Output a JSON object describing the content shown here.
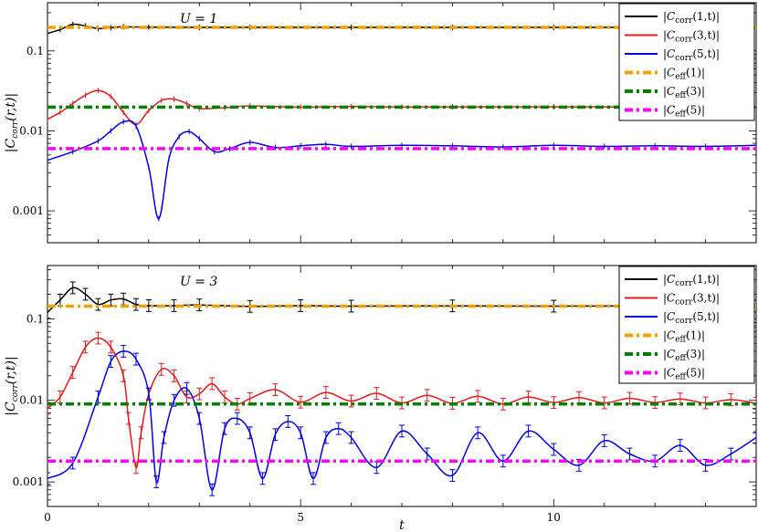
{
  "figure": {
    "xlabel": "t",
    "ylabel": "|C_corr(r,t)|"
  },
  "chart_data": [
    {
      "type": "line",
      "annotation": "U = 1",
      "xlabel": "",
      "ylabel": "|C_corr(r,t)|",
      "xlim": [
        0,
        14
      ],
      "ylim": [
        0.0004,
        0.4
      ],
      "yscale": "log",
      "x_ticks": [
        0,
        5,
        10
      ],
      "y_ticks": [
        0.001,
        0.01,
        0.1
      ],
      "y_tick_labels": [
        "0.001",
        "0.01",
        "0.1"
      ],
      "legend_position": "top-right",
      "series": [
        {
          "name": "|C_corr(1,t)|",
          "color": "#000000",
          "style": "solid",
          "x": [
            0,
            0.25,
            0.5,
            0.75,
            1.0,
            1.25,
            1.5,
            2,
            3,
            4,
            6,
            8,
            10,
            12,
            14
          ],
          "y": [
            0.165,
            0.185,
            0.215,
            0.205,
            0.19,
            0.195,
            0.2,
            0.198,
            0.197,
            0.197,
            0.197,
            0.197,
            0.197,
            0.197,
            0.197
          ]
        },
        {
          "name": "|C_corr(3,t)|",
          "color": "#e41a1c",
          "style": "solid",
          "x": [
            0,
            0.25,
            0.5,
            0.75,
            1.0,
            1.25,
            1.5,
            1.75,
            2.0,
            2.25,
            2.5,
            2.75,
            3.0,
            3.5,
            4.0,
            5,
            6,
            7,
            8,
            10,
            12,
            14
          ],
          "y": [
            0.014,
            0.017,
            0.022,
            0.028,
            0.032,
            0.027,
            0.017,
            0.012,
            0.018,
            0.024,
            0.025,
            0.022,
            0.019,
            0.0195,
            0.0205,
            0.0198,
            0.0202,
            0.0199,
            0.02,
            0.02,
            0.02,
            0.0198
          ]
        },
        {
          "name": "|C_corr(5,t)|",
          "color": "#0000e0",
          "style": "solid",
          "x": [
            0,
            0.5,
            1.0,
            1.25,
            1.5,
            1.75,
            2.0,
            2.2,
            2.4,
            2.6,
            2.8,
            3.0,
            3.3,
            3.6,
            4.0,
            4.5,
            5.0,
            5.5,
            6.0,
            7,
            8,
            9,
            10,
            11,
            12,
            13,
            14
          ],
          "y": [
            0.0043,
            0.0055,
            0.0075,
            0.01,
            0.013,
            0.0115,
            0.0035,
            0.0008,
            0.0045,
            0.0085,
            0.0098,
            0.008,
            0.0055,
            0.006,
            0.0072,
            0.0062,
            0.0065,
            0.0068,
            0.0064,
            0.0066,
            0.0065,
            0.0063,
            0.0066,
            0.0064,
            0.0065,
            0.0064,
            0.0066
          ]
        },
        {
          "name": "|C_eff(1)|",
          "color": "#f5a000",
          "style": "dashdot",
          "x": [
            0,
            14
          ],
          "y": [
            0.197,
            0.197
          ]
        },
        {
          "name": "|C_eff(3)|",
          "color": "#008000",
          "style": "dashdot",
          "x": [
            0,
            14
          ],
          "y": [
            0.0198,
            0.0198
          ]
        },
        {
          "name": "|C_eff(5)|",
          "color": "#ff00ff",
          "style": "dashdot",
          "x": [
            0,
            14
          ],
          "y": [
            0.006,
            0.006
          ]
        }
      ]
    },
    {
      "type": "line",
      "annotation": "U = 3",
      "xlabel": "t",
      "ylabel": "|C_corr(r,t)|",
      "xlim": [
        0,
        14
      ],
      "ylim": [
        0.0005,
        0.45
      ],
      "yscale": "log",
      "x_ticks": [
        0,
        5,
        10
      ],
      "x_tick_labels": [
        "0",
        "5",
        "10"
      ],
      "y_ticks": [
        0.001,
        0.01,
        0.1
      ],
      "y_tick_labels": [
        "0.001",
        "0.01",
        "0.1"
      ],
      "legend_position": "top-right",
      "series": [
        {
          "name": "|C_corr(1,t)|",
          "color": "#000000",
          "style": "solid",
          "error_bars": true,
          "x": [
            0,
            0.25,
            0.5,
            0.75,
            1.0,
            1.25,
            1.5,
            1.75,
            2.0,
            2.5,
            3,
            4,
            5,
            6,
            8,
            10,
            12,
            14
          ],
          "y": [
            0.12,
            0.17,
            0.24,
            0.2,
            0.15,
            0.17,
            0.175,
            0.15,
            0.145,
            0.145,
            0.148,
            0.142,
            0.145,
            0.143,
            0.144,
            0.143,
            0.144,
            0.143
          ]
        },
        {
          "name": "|C_corr(3,t)|",
          "color": "#e41a1c",
          "style": "solid",
          "error_bars": true,
          "x": [
            0,
            0.25,
            0.5,
            0.75,
            1.0,
            1.25,
            1.5,
            1.6,
            1.75,
            1.85,
            2.0,
            2.25,
            2.5,
            2.75,
            3.0,
            3.25,
            3.5,
            3.75,
            4.0,
            4.5,
            5.0,
            5.5,
            6.0,
            6.5,
            7.0,
            7.5,
            8.0,
            8.5,
            9.0,
            9.5,
            10.0,
            10.5,
            11.0,
            11.5,
            12.0,
            12.5,
            13.0,
            13.5,
            14.0
          ],
          "y": [
            0.008,
            0.011,
            0.022,
            0.045,
            0.058,
            0.045,
            0.02,
            0.006,
            0.0015,
            0.004,
            0.012,
            0.024,
            0.02,
            0.011,
            0.012,
            0.016,
            0.011,
            0.009,
            0.0105,
            0.0135,
            0.0095,
            0.0125,
            0.0098,
            0.0122,
            0.0093,
            0.0115,
            0.0092,
            0.0112,
            0.009,
            0.011,
            0.0094,
            0.0108,
            0.0093,
            0.0106,
            0.0094,
            0.0104,
            0.0093,
            0.0102,
            0.0092
          ]
        },
        {
          "name": "|C_corr(5,t)|",
          "color": "#0000e0",
          "style": "solid",
          "error_bars": true,
          "x": [
            0,
            0.5,
            1.0,
            1.25,
            1.5,
            1.75,
            2.0,
            2.15,
            2.3,
            2.5,
            2.75,
            3.0,
            3.25,
            3.5,
            3.75,
            4.0,
            4.25,
            4.5,
            4.75,
            5.0,
            5.25,
            5.5,
            5.75,
            6.0,
            6.5,
            7.0,
            7.5,
            8.0,
            8.5,
            9.0,
            9.5,
            10.0,
            10.5,
            11.0,
            11.5,
            12.0,
            12.5,
            13.0,
            13.5,
            14.0
          ],
          "y": [
            0.0011,
            0.0017,
            0.011,
            0.03,
            0.04,
            0.032,
            0.012,
            0.001,
            0.0035,
            0.01,
            0.014,
            0.006,
            0.0008,
            0.0045,
            0.006,
            0.004,
            0.0011,
            0.0038,
            0.0055,
            0.004,
            0.0011,
            0.0035,
            0.0045,
            0.0035,
            0.0015,
            0.0042,
            0.0022,
            0.0012,
            0.004,
            0.0018,
            0.0042,
            0.0025,
            0.0016,
            0.0032,
            0.0022,
            0.0018,
            0.0028,
            0.0016,
            0.0022,
            0.0035
          ]
        },
        {
          "name": "|C_eff(1)|",
          "color": "#f5a000",
          "style": "dashdot",
          "x": [
            0,
            14
          ],
          "y": [
            0.143,
            0.143
          ]
        },
        {
          "name": "|C_eff(3)|",
          "color": "#008000",
          "style": "dashdot",
          "x": [
            0,
            14
          ],
          "y": [
            0.009,
            0.009
          ]
        },
        {
          "name": "|C_eff(5)|",
          "color": "#ff00ff",
          "style": "dashdot",
          "x": [
            0,
            14
          ],
          "y": [
            0.0018,
            0.0018
          ]
        }
      ]
    }
  ]
}
